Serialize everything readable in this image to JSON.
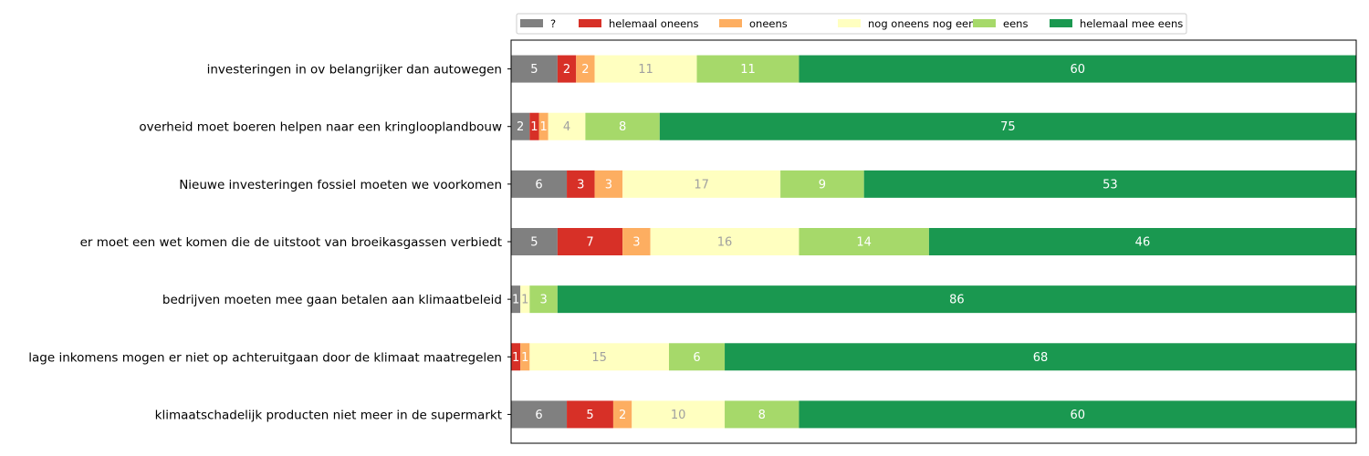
{
  "chart_data": {
    "type": "bar",
    "orientation": "horizontal",
    "stacked": true,
    "xlim": [
      0,
      91
    ],
    "x_axis_visible": false,
    "grid": false,
    "legend_placement": "top",
    "categories": [
      "investeringen in ov belangrijker dan autowegen",
      "overheid moet boeren helpen naar een kringlooplandbouw",
      "Nieuwe investeringen fossiel moeten we voorkomen",
      "er moet een wet komen die de uitstoot van  broeikasgassen verbiedt",
      "bedrijven moeten mee gaan betalen aan klimaatbeleid",
      "lage inkomens mogen er niet op achteruitgaan door de klimaat maatregelen",
      "klimaatschadelijk producten niet meer in de supermarkt "
    ],
    "series": [
      {
        "name": "?",
        "color": "#808080",
        "label_color": "#ffffff",
        "values": [
          5,
          2,
          6,
          5,
          1,
          0,
          6
        ]
      },
      {
        "name": "helemaal oneens",
        "color": "#d73027",
        "label_color": "#ffffff",
        "values": [
          2,
          1,
          3,
          7,
          0,
          1,
          5
        ]
      },
      {
        "name": "oneens",
        "color": "#fdae61",
        "label_color": "#ffffff",
        "values": [
          2,
          1,
          3,
          3,
          0,
          1,
          2
        ]
      },
      {
        "name": "nog oneens nog eens",
        "color": "#ffffc0",
        "label_color": "#a0a0a0",
        "values": [
          11,
          4,
          17,
          16,
          1,
          15,
          10
        ]
      },
      {
        "name": "eens",
        "color": "#a6d96a",
        "label_color": "#ffffff",
        "values": [
          11,
          8,
          9,
          14,
          3,
          6,
          8
        ]
      },
      {
        "name": "helemaal mee eens",
        "color": "#1a9850",
        "label_color": "#ffffff",
        "values": [
          60,
          75,
          53,
          46,
          86,
          68,
          60
        ]
      }
    ]
  }
}
